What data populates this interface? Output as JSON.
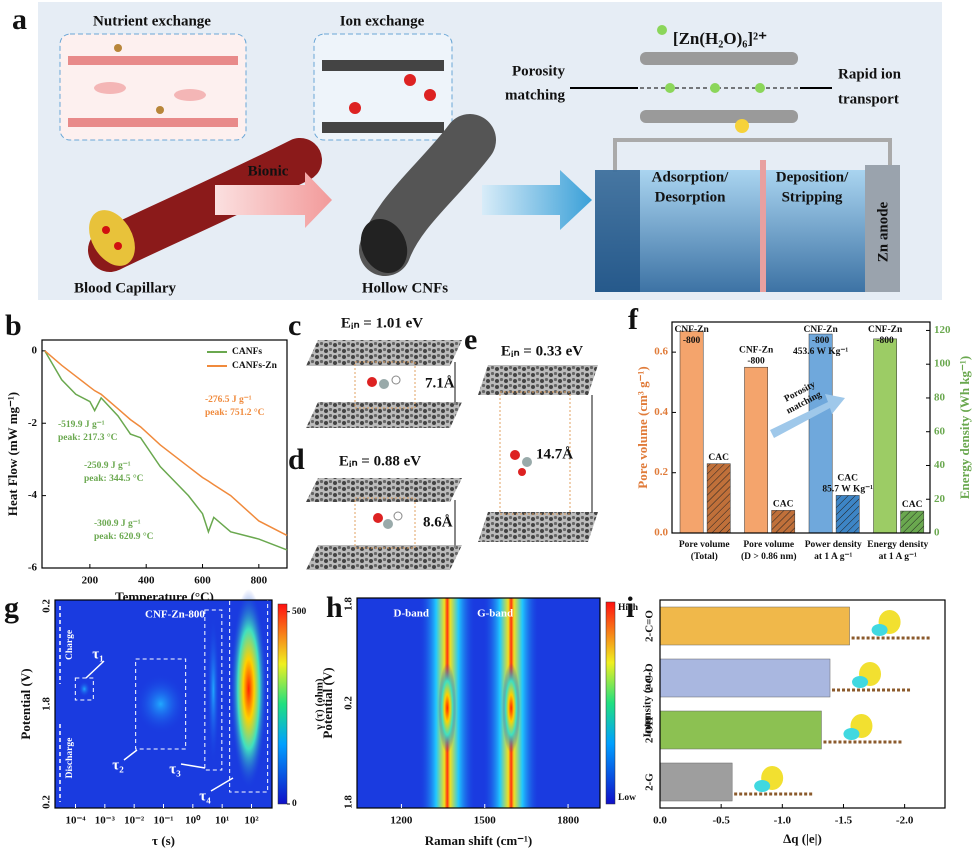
{
  "figure": {
    "a": {
      "panel": "a",
      "nutrient": "Nutrient exchange",
      "ion": "Ion exchange",
      "complex": "[Zn(H₂O)₆]²⁺",
      "porosity": [
        "Porosity",
        "matching"
      ],
      "rapid": [
        "Rapid ion",
        "transport"
      ],
      "bionic": "Bionic",
      "capillary": "Blood Capillary",
      "cnfs": "Hollow CNFs",
      "adsorption": [
        "Adsorption/",
        "Desorption"
      ],
      "deposition": [
        "Deposition/",
        "Stripping"
      ],
      "anode": "Zn anode"
    },
    "c": {
      "panel": "c",
      "energy": "Eᵢₙ = 1.01 eV",
      "distance": "7.1Å"
    },
    "d": {
      "panel": "d",
      "energy": "Eᵢₙ = 0.88 eV",
      "distance": "8.6Å"
    },
    "e": {
      "panel": "e",
      "energy": "Eᵢₙ = 0.33 eV",
      "distance": "14.7Å"
    }
  },
  "chart_data": [
    {
      "panel": "b",
      "type": "line",
      "xlabel": "Temperature (°C)",
      "ylabel": "Heat Flow (mW mg⁻¹)",
      "xlim": [
        30,
        900
      ],
      "xticks": [
        200,
        400,
        600,
        800
      ],
      "ylim": [
        -6,
        0.3
      ],
      "yticks": [
        0,
        -2,
        -4,
        -6
      ],
      "legend": "upper right",
      "x": [
        40,
        100,
        150,
        200,
        217,
        240,
        300,
        344,
        380,
        450,
        500,
        550,
        600,
        621,
        640,
        700,
        800,
        900
      ],
      "series": [
        {
          "name": "CANFs",
          "color": "#6aa84f",
          "values": [
            0,
            -0.8,
            -1.2,
            -1.4,
            -1.65,
            -1.3,
            -1.8,
            -2.3,
            -2.4,
            -3.2,
            -3.6,
            -4.0,
            -4.5,
            -5.0,
            -4.6,
            -5.0,
            -5.2,
            -5.5
          ]
        },
        {
          "name": "CANFs-Zn",
          "color": "#f08a3c",
          "values": [
            0,
            -0.4,
            -0.7,
            -1.0,
            -1.1,
            -1.2,
            -1.6,
            -1.9,
            -2.1,
            -2.6,
            -2.9,
            -3.2,
            -3.5,
            -3.6,
            -3.7,
            -4.0,
            -4.7,
            -5.1
          ]
        }
      ],
      "annotations": [
        {
          "lines": [
            "-519.9 J g⁻¹",
            "peak: 217.3 °C"
          ],
          "color": "#6aa84f"
        },
        {
          "lines": [
            "-250.9 J g⁻¹",
            "peak: 344.5 °C"
          ],
          "color": "#6aa84f"
        },
        {
          "lines": [
            "-300.9 J g⁻¹",
            "peak: 620.9 °C"
          ],
          "color": "#6aa84f"
        },
        {
          "lines": [
            "-276.5 J g⁻¹",
            "peak: 751.2 °C"
          ],
          "color": "#f08a3c"
        }
      ]
    },
    {
      "panel": "f",
      "type": "grouped_bar",
      "ylabel": "Pore volume (cm³ g⁻¹)",
      "y2label": "Energy density (Wh kg⁻¹)",
      "ylim": [
        0,
        0.7
      ],
      "yticks": [
        {
          "value": 0,
          "label": "0.0"
        },
        0.2,
        0.4,
        0.6
      ],
      "y2lim": [
        0,
        125
      ],
      "y2ticks": [
        0,
        20,
        40,
        60,
        80,
        100,
        120
      ],
      "y3lim": [
        0,
        481
      ],
      "annotation": [
        "Porosity",
        "matching"
      ],
      "groups": [
        {
          "category": [
            "Pore volume",
            "(Total)"
          ],
          "axis": "y",
          "bars": [
            {
              "label": [
                "CNF-Zn",
                "-800"
              ],
              "value": 0.67,
              "color": "#f4a46c"
            },
            {
              "label": [
                "CAC"
              ],
              "value": 0.23,
              "color": "#c0703a",
              "hatch": true
            }
          ]
        },
        {
          "category": [
            "Pore volume",
            "(D > 0.86 nm)"
          ],
          "axis": "y",
          "bars": [
            {
              "label": [
                "CNF-Zn",
                "-800"
              ],
              "value": 0.55,
              "color": "#f4a46c"
            },
            {
              "label": [
                "CAC"
              ],
              "value": 0.075,
              "color": "#c0703a",
              "hatch": true
            }
          ]
        },
        {
          "category": [
            "Power density",
            "at 1 A g⁻¹"
          ],
          "axis": "y3",
          "bars": [
            {
              "label": [
                "CNF-Zn",
                "-800"
              ],
              "value": 453.6,
              "value_label": "453.6 W Kg⁻¹",
              "color": "#6fa8dc"
            },
            {
              "label": [
                "CAC"
              ],
              "value": 85.7,
              "value_label": "85.7 W Kg⁻¹",
              "color": "#3d85c6",
              "hatch": true
            }
          ]
        },
        {
          "category": [
            "Energy density",
            "at 1 A g⁻¹"
          ],
          "axis": "y2",
          "bars": [
            {
              "label": [
                "CNF-Zn",
                "-800"
              ],
              "value": 115,
              "color": "#9ccc65"
            },
            {
              "label": [
                "CAC"
              ],
              "value": 13,
              "color": "#6aa84f",
              "hatch": true
            }
          ]
        }
      ]
    },
    {
      "panel": "g",
      "type": "heatmap",
      "title": "CNF-Zn-800",
      "xlabel": "τ (s)",
      "ylabel": "Potential (V)",
      "log_x": true,
      "xlim": [
        2e-05,
        500
      ],
      "xticks": [
        {
          "value": 0.0001,
          "label": "10⁻⁴"
        },
        {
          "value": 0.001,
          "label": "10⁻³"
        },
        {
          "value": 0.01,
          "label": "10⁻²"
        },
        {
          "value": 0.1,
          "label": "10⁻¹"
        },
        {
          "value": 1,
          "label": "10⁰"
        },
        {
          "value": 10,
          "label": "10¹"
        },
        {
          "value": 100,
          "label": "10²"
        }
      ],
      "ycategories": [
        "0.2",
        "1.8",
        "0.2"
      ],
      "colorbar": {
        "label": "γ (τ) (ohm)",
        "lim": [
          0,
          520
        ],
        "ticks": [
          0,
          500
        ]
      },
      "arrows": [
        "Charge",
        "Discharge"
      ],
      "peaks": [
        {
          "label": "τ₁",
          "x": 0.0002
        },
        {
          "label": "τ₂",
          "x": 0.08
        },
        {
          "label": "τ₃",
          "x": 5
        },
        {
          "label": "τ₄",
          "x": 80
        }
      ]
    },
    {
      "panel": "h",
      "type": "heatmap",
      "xlabel": "Raman shift (cm⁻¹)",
      "ylabel": "Potential (V)",
      "xlim": [
        1040,
        1915
      ],
      "xticks": [
        1200,
        1500,
        1800
      ],
      "ycategories": [
        "1.8",
        "0.2",
        "1.8"
      ],
      "colorbar": {
        "label": "Intensity (a.u.)",
        "high": "High",
        "low": "Low"
      },
      "bands": [
        {
          "label": "D-band",
          "x": 1365
        },
        {
          "label": "G-band",
          "x": 1595
        }
      ]
    },
    {
      "panel": "i",
      "type": "hbar",
      "xlabel": "Δq (|e|)",
      "categories": [
        "2-C=O",
        "2-C-O",
        "2-OH",
        "2-G"
      ],
      "values": [
        -1.55,
        -1.39,
        -1.32,
        -0.59
      ],
      "colors": [
        "#f0b84a",
        "#a9b7e0",
        "#8cc152",
        "#9e9e9e"
      ],
      "xlim": [
        0,
        -2.33
      ],
      "xticks": [
        {
          "value": 0,
          "label": "0.0"
        },
        -0.5,
        {
          "value": -1,
          "label": "-1.0"
        },
        -1.5,
        {
          "value": -2,
          "label": "-2.0"
        }
      ]
    }
  ]
}
